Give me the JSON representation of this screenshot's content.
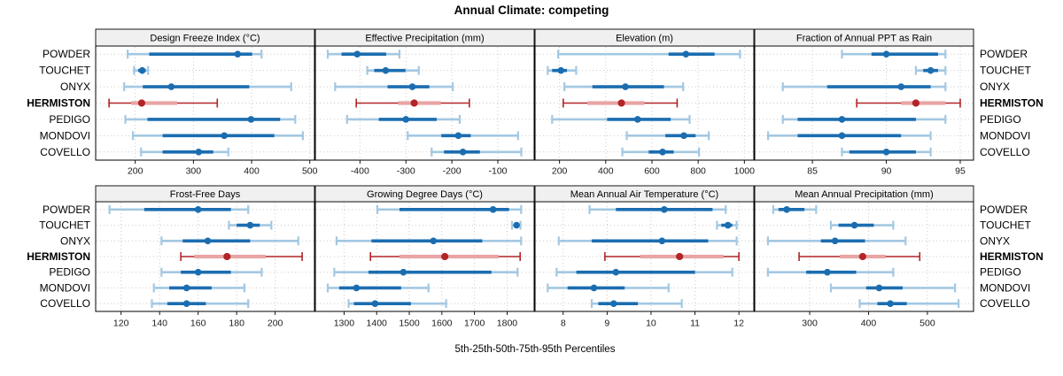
{
  "title": "Annual Climate: competing",
  "xlabel": "5th-25th-50th-75th-95th Percentiles",
  "percentile_labels": [
    "5th",
    "25th",
    "50th",
    "75th",
    "95th"
  ],
  "stations": [
    "POWDER",
    "TOUCHET",
    "ONYX",
    "HERMISTON",
    "PEDIGO",
    "MONDOVI",
    "COVELLO"
  ],
  "highlight_station": "HERMISTON",
  "colors": {
    "series_blue": "#1b6db0",
    "series_blue_light": "#a3c8e2",
    "series_red": "#b22428",
    "series_red_light": "#e9a4a4",
    "strip_bg": "#f0f0f0",
    "grid": "#c9c9c9",
    "border": "#000000",
    "tick_text": "#1a1a1a"
  },
  "chart_data": {
    "type": "scatter",
    "variant": "dot-whisker percentile trellis (5th-25th-50th-75th-95th)",
    "layout": {
      "grid_rows": 2,
      "grid_cols": 4,
      "categories_axis": "y",
      "grid": "dotted",
      "legend": "none"
    },
    "title": "Annual Climate: competing",
    "xlabel": "5th-25th-50th-75th-95th Percentiles",
    "categories": [
      "POWDER",
      "TOUCHET",
      "ONYX",
      "HERMISTON",
      "PEDIGO",
      "MONDOVI",
      "COVELLO"
    ],
    "panels": [
      {
        "title": "Design Freeze Index (°C)",
        "ticks": [
          200,
          300,
          400,
          500
        ],
        "xlim": [
          132,
          508
        ],
        "values": [
          [
            187,
            224,
            376,
            401,
            417
          ],
          [
            198,
            205,
            212,
            218,
            222
          ],
          [
            181,
            213,
            262,
            396,
            468
          ],
          [
            155,
            193,
            211,
            272,
            341
          ],
          [
            183,
            221,
            399,
            449,
            475
          ],
          [
            196,
            247,
            353,
            439,
            488
          ],
          [
            210,
            247,
            309,
            334,
            360
          ]
        ]
      },
      {
        "title": "Effective Precipitation (mm)",
        "ticks": [
          -400,
          -300,
          -200,
          -100
        ],
        "xlim": [
          -497,
          -21
        ],
        "values": [
          [
            -470,
            -440,
            -406,
            -343,
            -314
          ],
          [
            -384,
            -369,
            -344,
            -301,
            -272
          ],
          [
            -454,
            -340,
            -286,
            -249,
            -198
          ],
          [
            -408,
            -317,
            -282,
            -224,
            -162
          ],
          [
            -428,
            -359,
            -300,
            -233,
            -183
          ],
          [
            -296,
            -223,
            -186,
            -159,
            -56
          ],
          [
            -244,
            -217,
            -176,
            -139,
            -49
          ]
        ]
      },
      {
        "title": "Elevation (m)",
        "ticks": [
          200,
          400,
          600,
          800,
          1000
        ],
        "xlim": [
          94,
          1041
        ],
        "values": [
          [
            194,
            672,
            747,
            871,
            981
          ],
          [
            149,
            168,
            206,
            232,
            272
          ],
          [
            221,
            342,
            485,
            652,
            735
          ],
          [
            216,
            320,
            468,
            567,
            709
          ],
          [
            168,
            406,
            538,
            681,
            763
          ],
          [
            491,
            658,
            738,
            789,
            846
          ],
          [
            472,
            586,
            646,
            694,
            804
          ]
        ]
      },
      {
        "title": "Fraction of Annual PPT as Rain",
        "ticks": [
          85,
          90,
          95
        ],
        "xlim": [
          81.1,
          95.9
        ],
        "values": [
          [
            87,
            89,
            90,
            93.5,
            94
          ],
          [
            92,
            92.5,
            93,
            93.5,
            94
          ],
          [
            83,
            86,
            91,
            93,
            94
          ],
          [
            88,
            91,
            92,
            94,
            95
          ],
          [
            83,
            84,
            87,
            92,
            94
          ],
          [
            82,
            84,
            87,
            91,
            93
          ],
          [
            87,
            87.5,
            90,
            92,
            93
          ]
        ]
      },
      {
        "title": "Frost-Free Days",
        "ticks": [
          120,
          140,
          160,
          180,
          200
        ],
        "xlim": [
          106.8,
          220.4
        ],
        "values": [
          [
            114,
            132,
            160,
            177,
            186
          ],
          [
            176,
            180,
            187,
            192,
            198
          ],
          [
            141,
            152,
            165,
            187,
            212
          ],
          [
            151,
            158,
            175,
            195,
            214
          ],
          [
            141,
            151,
            160,
            177,
            193
          ],
          [
            137,
            145,
            154,
            167,
            184
          ],
          [
            136,
            144,
            154,
            164,
            186
          ]
        ]
      },
      {
        "title": "Growing Degree Days (°C)",
        "ticks": [
          1300,
          1400,
          1500,
          1600,
          1700,
          1800
        ],
        "xlim": [
          1212,
          1883
        ],
        "values": [
          [
            1402,
            1470,
            1757,
            1806,
            1843
          ],
          [
            1815,
            1822,
            1829,
            1835,
            1841
          ],
          [
            1277,
            1384,
            1574,
            1724,
            1843
          ],
          [
            1381,
            1470,
            1609,
            1774,
            1840
          ],
          [
            1270,
            1375,
            1482,
            1752,
            1832
          ],
          [
            1250,
            1285,
            1338,
            1475,
            1559
          ],
          [
            1314,
            1330,
            1395,
            1505,
            1613
          ]
        ]
      },
      {
        "title": "Mean Annual Air Temperature (°C)",
        "ticks": [
          8,
          9,
          10,
          11,
          12
        ],
        "xlim": [
          7.36,
          12.34
        ],
        "values": [
          [
            8.6,
            9.2,
            10.3,
            11.4,
            11.7
          ],
          [
            11.5,
            11.6,
            11.75,
            11.85,
            11.95
          ],
          [
            7.9,
            8.65,
            10.25,
            11.3,
            11.95
          ],
          [
            8.95,
            9.75,
            10.65,
            11.65,
            12.0
          ],
          [
            7.85,
            8.3,
            9.2,
            11.0,
            11.85
          ],
          [
            7.65,
            8.1,
            8.7,
            9.4,
            10.4
          ],
          [
            8.65,
            8.8,
            9.15,
            9.7,
            10.7
          ]
        ]
      },
      {
        "title": "Mean Annual Precipitation (mm)",
        "ticks": [
          300,
          400,
          500
        ],
        "xlim": [
          206.6,
          578.4
        ],
        "values": [
          [
            238,
            247,
            261,
            291,
            311
          ],
          [
            336,
            349,
            376,
            409,
            442
          ],
          [
            229,
            319,
            343,
            394,
            463
          ],
          [
            282,
            351,
            390,
            429,
            487
          ],
          [
            229,
            294,
            330,
            379,
            442
          ],
          [
            336,
            396,
            418,
            458,
            547
          ],
          [
            385,
            415,
            437,
            465,
            553
          ]
        ]
      }
    ]
  }
}
